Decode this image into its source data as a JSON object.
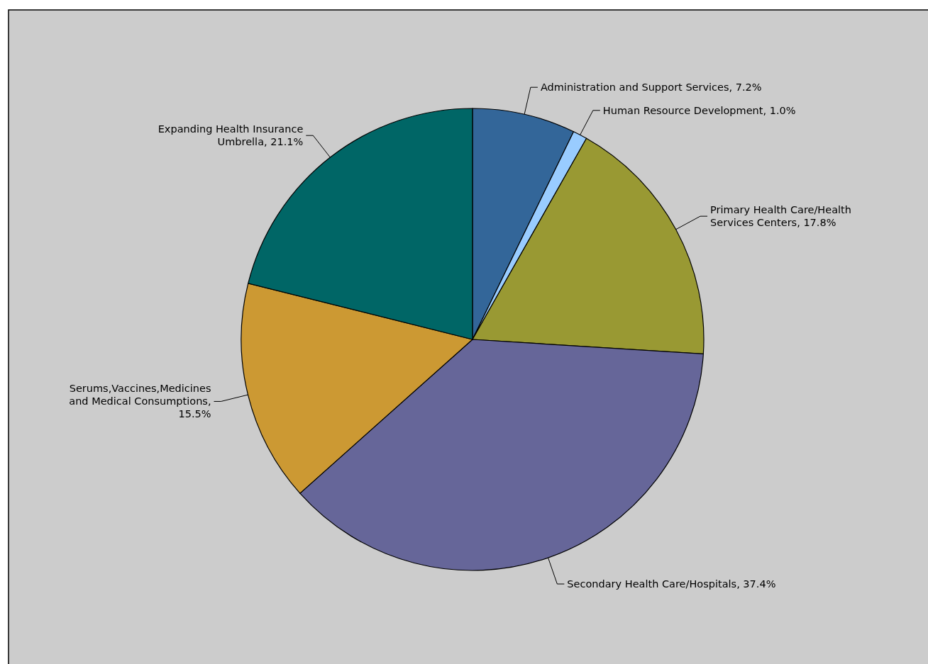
{
  "chart_data": {
    "type": "pie",
    "categories": [
      "Administration and Support Services, 7.2%",
      "Human Resource Development, 1.0%",
      "Primary Health Care/Health Services Centers, 17.8%",
      "Secondary Health Care/Hospitals, 37.4%",
      "Serums,Vaccines,Medicines and Medical Consumptions, 15.5%",
      "Expanding Health Insurance Umbrella, 21.1%"
    ],
    "values": [
      7.2,
      1.0,
      17.8,
      37.4,
      15.5,
      21.1
    ],
    "colors": [
      "#336699",
      "#99ccff",
      "#999933",
      "#666699",
      "#cc9933",
      "#006666"
    ]
  }
}
